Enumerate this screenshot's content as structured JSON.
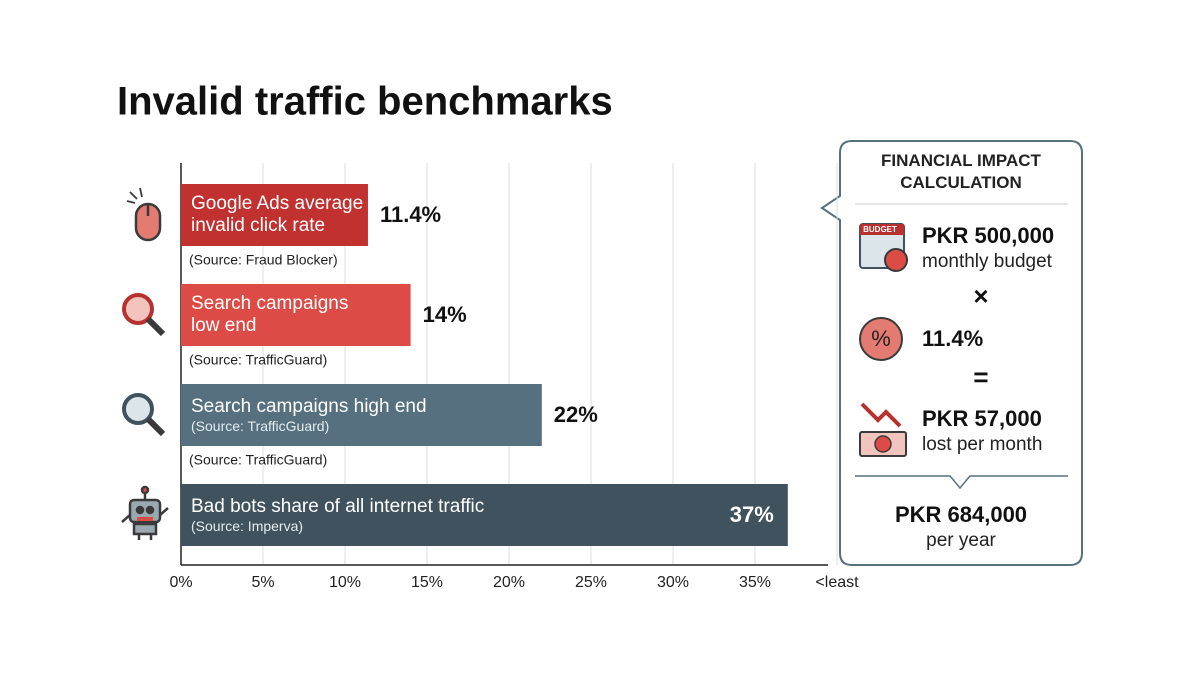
{
  "title": "Invalid traffic benchmarks",
  "chart_data": {
    "type": "bar",
    "orientation": "horizontal",
    "categories": [
      "Google Ads average invalid click rate",
      "Search campaigns low end",
      "Search campaigns high end",
      "Bad bots share of all internet traffic"
    ],
    "values": [
      11.4,
      14,
      22,
      37
    ],
    "value_labels": [
      "11.4%",
      "14%",
      "22%",
      "37%"
    ],
    "inner_notes": [
      null,
      null,
      "(Source: TrafficGuard)",
      "(Source: Imperva)"
    ],
    "notes": [
      "(Source: Fraud Blocker)",
      "(Source: TrafficGuard)",
      "(Source: TrafficGuard)",
      null
    ],
    "colors": [
      "#c0312f",
      "#dd4b46",
      "#56707f",
      "#3f525e"
    ],
    "xlim": [
      0,
      40
    ],
    "xticks": [
      {
        "value": 0,
        "label": "0%"
      },
      {
        "value": 5,
        "label": "5%"
      },
      {
        "value": 10,
        "label": "10%"
      },
      {
        "value": 15,
        "label": "15%"
      },
      {
        "value": 20,
        "label": "20%"
      },
      {
        "value": 25,
        "label": "25%"
      },
      {
        "value": 30,
        "label": "30%"
      },
      {
        "value": 35,
        "label": "35%"
      },
      {
        "value": 40,
        "label": "<least"
      }
    ],
    "grid": true
  },
  "panel": {
    "title": "FINANCIAL IMPACT CALCULATION",
    "budget_icon_text": "BUDGET",
    "budget_value": "PKR 500,000",
    "budget_label": "monthly budget",
    "operator": "×",
    "rate": "11.4%",
    "equals": "=",
    "loss_value": "PKR 57,000",
    "loss_label": "lost per month",
    "annual_value": "PKR 684,000",
    "annual_label": "per year"
  }
}
